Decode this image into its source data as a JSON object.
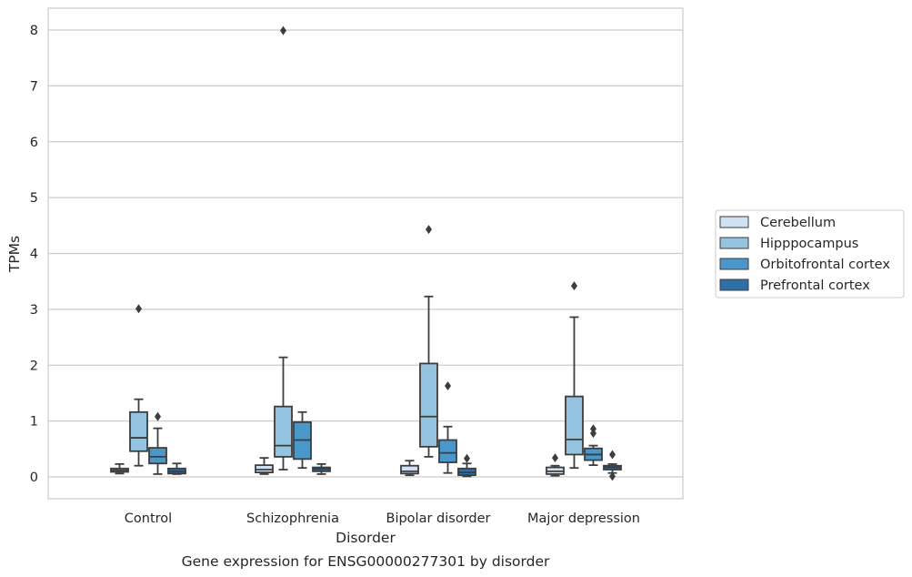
{
  "chart_data": {
    "type": "box",
    "caption": "Gene expression for ENSG00000277301 by disorder",
    "xlabel": "Disorder",
    "ylabel": "TPMs",
    "ylim": [
      -0.4,
      8.4
    ],
    "yticks": [
      0,
      1,
      2,
      3,
      4,
      5,
      6,
      7,
      8
    ],
    "grid": "horizontal",
    "legend_position": "right",
    "categories": [
      "Control",
      "Schizophrenia",
      "Bipolar disorder",
      "Major depression"
    ],
    "series": [
      {
        "name": "Cerebellum",
        "color": "#d0e1f2",
        "boxes": [
          {
            "whislo": 0.06,
            "q1": 0.09,
            "med": 0.12,
            "q3": 0.15,
            "whishi": 0.23,
            "fliers": []
          },
          {
            "whislo": 0.05,
            "q1": 0.08,
            "med": 0.13,
            "q3": 0.21,
            "whishi": 0.34,
            "fliers": []
          },
          {
            "whislo": 0.03,
            "q1": 0.06,
            "med": 0.1,
            "q3": 0.2,
            "whishi": 0.29,
            "fliers": []
          },
          {
            "whislo": 0.02,
            "q1": 0.05,
            "med": 0.1,
            "q3": 0.17,
            "whishi": 0.2,
            "fliers": [
              0.34
            ]
          }
        ]
      },
      {
        "name": "Hipppocampus",
        "color": "#94c4df",
        "boxes": [
          {
            "whislo": 0.2,
            "q1": 0.46,
            "med": 0.7,
            "q3": 1.16,
            "whishi": 1.39,
            "fliers": [
              3.01
            ]
          },
          {
            "whislo": 0.13,
            "q1": 0.36,
            "med": 0.56,
            "q3": 1.26,
            "whishi": 2.14,
            "fliers": [
              7.99
            ]
          },
          {
            "whislo": 0.36,
            "q1": 0.54,
            "med": 1.08,
            "q3": 2.03,
            "whishi": 3.23,
            "fliers": [
              4.43
            ]
          },
          {
            "whislo": 0.16,
            "q1": 0.4,
            "med": 0.67,
            "q3": 1.44,
            "whishi": 2.86,
            "fliers": [
              3.42
            ]
          }
        ]
      },
      {
        "name": "Orbitofrontal cortex",
        "color": "#4a98c9",
        "boxes": [
          {
            "whislo": 0.05,
            "q1": 0.24,
            "med": 0.36,
            "q3": 0.52,
            "whishi": 0.87,
            "fliers": [
              1.08
            ]
          },
          {
            "whislo": 0.16,
            "q1": 0.32,
            "med": 0.66,
            "q3": 0.98,
            "whishi": 1.16,
            "fliers": []
          },
          {
            "whislo": 0.07,
            "q1": 0.26,
            "med": 0.43,
            "q3": 0.66,
            "whishi": 0.9,
            "fliers": [
              1.63
            ]
          },
          {
            "whislo": 0.21,
            "q1": 0.3,
            "med": 0.4,
            "q3": 0.51,
            "whishi": 0.56,
            "fliers": [
              0.78,
              0.86
            ]
          }
        ]
      },
      {
        "name": "Prefrontal cortex",
        "color": "#2e6fa7",
        "boxes": [
          {
            "whislo": 0.05,
            "q1": 0.06,
            "med": 0.1,
            "q3": 0.15,
            "whishi": 0.24,
            "fliers": []
          },
          {
            "whislo": 0.05,
            "q1": 0.1,
            "med": 0.14,
            "q3": 0.17,
            "whishi": 0.23,
            "fliers": []
          },
          {
            "whislo": 0.01,
            "q1": 0.03,
            "med": 0.08,
            "q3": 0.15,
            "whishi": 0.24,
            "fliers": [
              0.33
            ]
          },
          {
            "whislo": 0.07,
            "q1": 0.13,
            "med": 0.17,
            "q3": 0.2,
            "whishi": 0.23,
            "fliers": [
              0.4,
              0.01
            ]
          }
        ]
      }
    ]
  }
}
